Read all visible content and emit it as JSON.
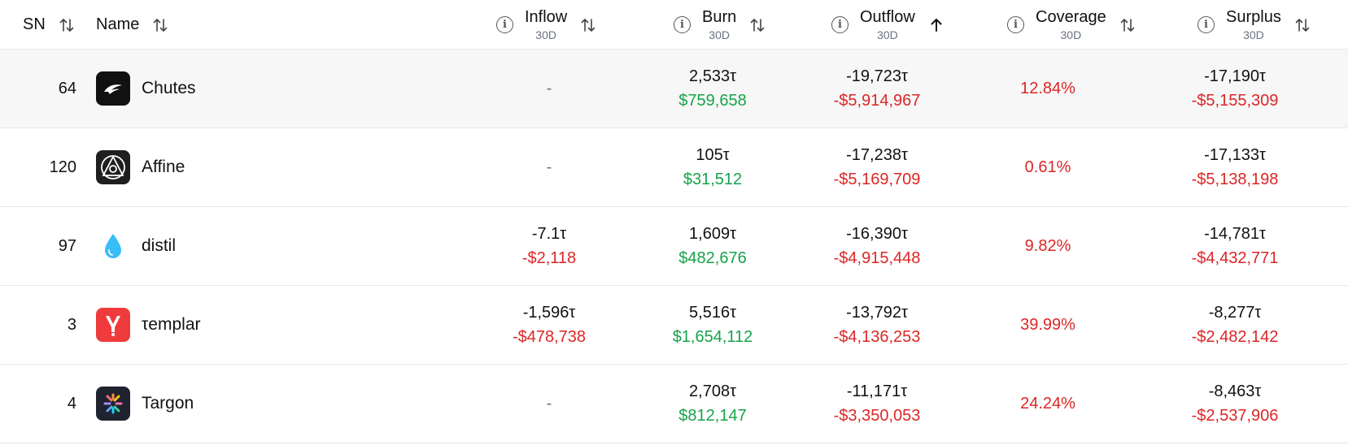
{
  "header": {
    "sn": "SN",
    "name": "Name",
    "inflow": "Inflow",
    "inflow_sub": "30D",
    "burn": "Burn",
    "burn_sub": "30D",
    "outflow": "Outflow",
    "outflow_sub": "30D",
    "coverage": "Coverage",
    "coverage_sub": "30D",
    "surplus": "Surplus",
    "surplus_sub": "30D",
    "sorted_column": "outflow",
    "sort_direction": "ascending"
  },
  "colors": {
    "positive": "#16a34a",
    "negative": "#dc2626",
    "highlight_row": "#f7f7f7"
  },
  "rows": [
    {
      "sn": "64",
      "name": "Chutes",
      "icon": "chutes-logo-icon",
      "inflow_tao": "",
      "inflow_usd": "",
      "inflow_empty": "-",
      "burn_tao": "2,533τ",
      "burn_usd": "$759,658",
      "outflow_tao": "-19,723τ",
      "outflow_usd": "-$5,914,967",
      "coverage": "12.84%",
      "surplus_tao": "-17,190τ",
      "surplus_usd": "-$5,155,309"
    },
    {
      "sn": "120",
      "name": "Affine",
      "icon": "affine-logo-icon",
      "inflow_tao": "",
      "inflow_usd": "",
      "inflow_empty": "-",
      "burn_tao": "105τ",
      "burn_usd": "$31,512",
      "outflow_tao": "-17,238τ",
      "outflow_usd": "-$5,169,709",
      "coverage": "0.61%",
      "surplus_tao": "-17,133τ",
      "surplus_usd": "-$5,138,198"
    },
    {
      "sn": "97",
      "name": "distil",
      "icon": "water-drop-icon",
      "inflow_tao": "-7.1τ",
      "inflow_usd": "-$2,118",
      "inflow_empty": "",
      "burn_tao": "1,609τ",
      "burn_usd": "$482,676",
      "outflow_tao": "-16,390τ",
      "outflow_usd": "-$4,915,448",
      "coverage": "9.82%",
      "surplus_tao": "-14,781τ",
      "surplus_usd": "-$4,432,771"
    },
    {
      "sn": "3",
      "name": "τemplar",
      "icon": "templar-logo-icon",
      "inflow_tao": "-1,596τ",
      "inflow_usd": "-$478,738",
      "inflow_empty": "",
      "burn_tao": "5,516τ",
      "burn_usd": "$1,654,112",
      "outflow_tao": "-13,792τ",
      "outflow_usd": "-$4,136,253",
      "coverage": "39.99%",
      "surplus_tao": "-8,277τ",
      "surplus_usd": "-$2,482,142"
    },
    {
      "sn": "4",
      "name": "Targon",
      "icon": "targon-logo-icon",
      "inflow_tao": "",
      "inflow_usd": "",
      "inflow_empty": "-",
      "burn_tao": "2,708τ",
      "burn_usd": "$812,147",
      "outflow_tao": "-11,171τ",
      "outflow_usd": "-$3,350,053",
      "coverage": "24.24%",
      "surplus_tao": "-8,463τ",
      "surplus_usd": "-$2,537,906"
    }
  ]
}
